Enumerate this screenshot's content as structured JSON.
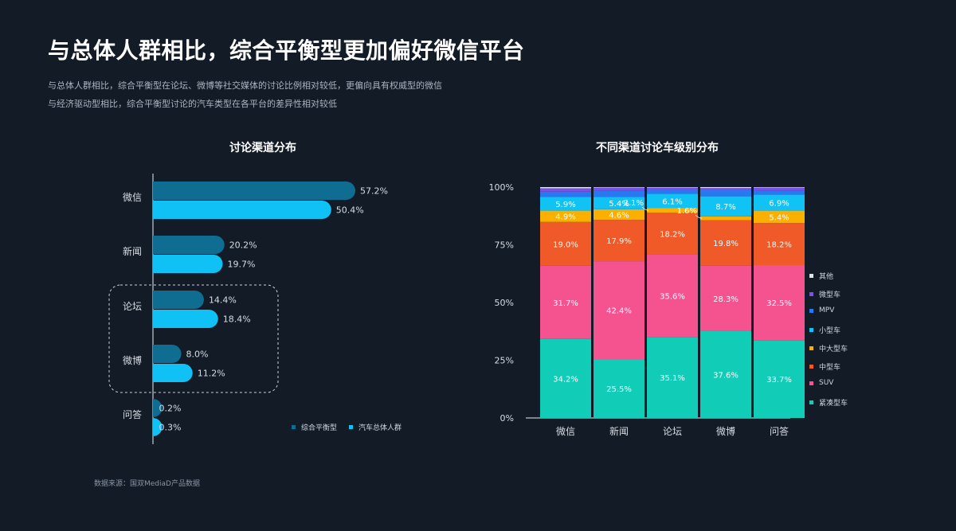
{
  "page": {
    "title": "与总体人群相比，综合平衡型更加偏好微信平台",
    "subtitle_lines": [
      "与总体人群相比，综合平衡型在论坛、微博等社交媒体的讨论比例相对较低，更偏向具有权威型的微信",
      "与经济驱动型相比，综合平衡型讨论的汽车类型在各平台的差异性相对较低"
    ],
    "source": "数据来源：国双MediaD产品数据"
  },
  "chart_data": [
    {
      "type": "bar",
      "orientation": "horizontal",
      "title": "讨论渠道分布",
      "categories": [
        "微信",
        "新闻",
        "论坛",
        "微博",
        "问答"
      ],
      "series": [
        {
          "name": "综合平衡型",
          "color": "#0e6d91",
          "values": [
            57.2,
            20.2,
            14.4,
            8.0,
            0.2
          ],
          "labels": [
            "57.2%",
            "20.2%",
            "14.4%",
            "8.0%",
            "0.2%"
          ]
        },
        {
          "name": "汽车总体人群",
          "color": "#0fc1f5",
          "values": [
            50.4,
            19.7,
            18.4,
            11.2,
            0.3
          ],
          "labels": [
            "50.4%",
            "19.7%",
            "18.4%",
            "11.2%",
            "0.3%"
          ]
        }
      ],
      "highlight": [
        "论坛",
        "微博"
      ],
      "legend_position": "bottom-right"
    },
    {
      "type": "bar",
      "stacked": true,
      "title": "不同渠道讨论车级别分布",
      "categories": [
        "微信",
        "新闻",
        "论坛",
        "微博",
        "问答"
      ],
      "ylim": [
        0,
        100
      ],
      "yticks": [
        "0%",
        "25%",
        "50%",
        "75%",
        "100%"
      ],
      "legend_position": "right",
      "series": [
        {
          "name": "紧凑型车",
          "color": "#11cdb7",
          "values": [
            34.2,
            25.5,
            35.1,
            37.6,
            33.7
          ],
          "labels": [
            "34.2%",
            "25.5%",
            "35.1%",
            "37.6%",
            "33.7%"
          ]
        },
        {
          "name": "SUV",
          "color": "#f5538f",
          "values": [
            31.7,
            42.4,
            35.6,
            28.3,
            32.5
          ],
          "labels": [
            "31.7%",
            "42.4%",
            "35.6%",
            "28.3%",
            "32.5%"
          ]
        },
        {
          "name": "中型车",
          "color": "#ef5a28",
          "values": [
            19.0,
            17.9,
            18.2,
            19.8,
            18.2
          ],
          "labels": [
            "19.0%",
            "17.9%",
            "18.2%",
            "19.8%",
            "18.2%"
          ]
        },
        {
          "name": "中大型车",
          "color": "#fbb000",
          "values": [
            4.9,
            4.6,
            2.1,
            1.6,
            5.4
          ],
          "labels": [
            "4.9%",
            "4.6%",
            "2.1%",
            "1.6%",
            "5.4%"
          ]
        },
        {
          "name": "小型车",
          "color": "#11c2f4",
          "values": [
            5.9,
            5.4,
            6.1,
            8.7,
            6.9
          ],
          "labels": [
            "5.9%",
            "5.4%",
            "6.1%",
            "8.7%",
            "6.9%"
          ]
        },
        {
          "name": "MPV",
          "color": "#2878f0",
          "values": [
            2.3,
            2.7,
            1.7,
            2.8,
            1.8
          ],
          "labels": []
        },
        {
          "name": "微型车",
          "color": "#7a52e8",
          "values": [
            1.5,
            1.3,
            1.0,
            0.8,
            1.3
          ],
          "labels": []
        },
        {
          "name": "其他",
          "color": "#dfe4ea",
          "values": [
            0.5,
            0.2,
            0.2,
            0.4,
            0.2
          ],
          "labels": []
        }
      ]
    }
  ]
}
